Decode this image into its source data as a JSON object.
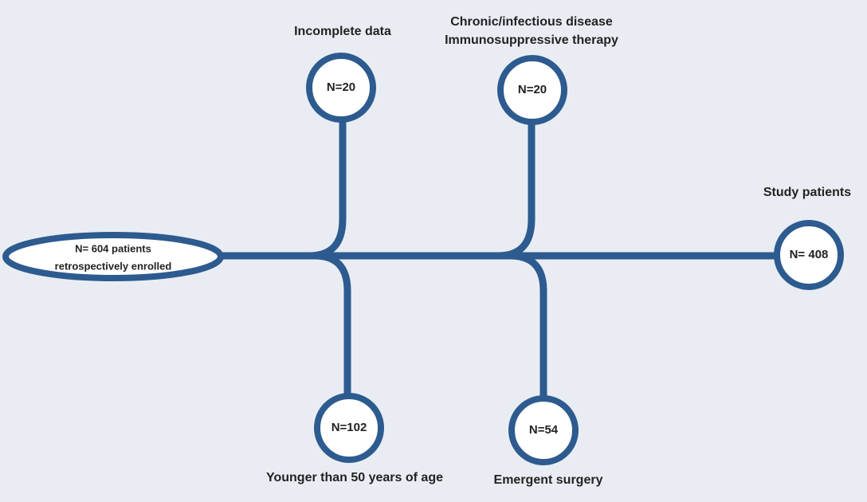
{
  "start": {
    "lines": [
      "N= 604 patients",
      "retrospectively enrolled"
    ]
  },
  "exclusions": [
    {
      "label": [
        "Incomplete data"
      ],
      "count": "N=20"
    },
    {
      "label": [
        "Chronic/infectious disease",
        "Immunosuppressive therapy"
      ],
      "count": "N=20"
    },
    {
      "label": [
        "Younger than 50 years of age"
      ],
      "count": "N=102"
    },
    {
      "label": [
        "Emergent surgery"
      ],
      "count": "N=54"
    }
  ],
  "result": {
    "label": "Study patients",
    "count": "N= 408"
  }
}
